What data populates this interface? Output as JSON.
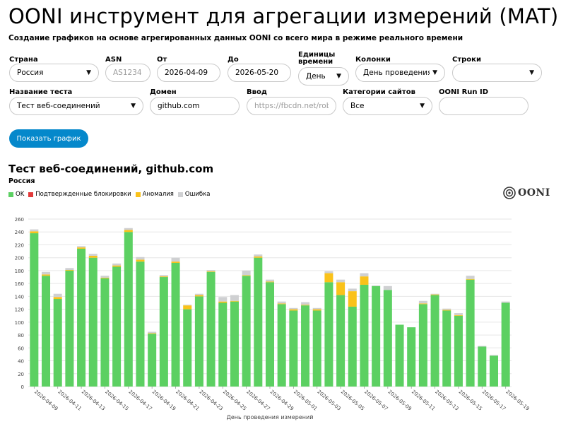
{
  "header": {
    "title": "OONI инструмент для агрегации измерений (MAT)",
    "subtitle": "Создание графиков на основе агрегированных данных OONI со всего мира в режиме реального времени"
  },
  "form": {
    "country_label": "Страна",
    "country_value": "Россия",
    "asn_label": "ASN",
    "asn_placeholder": "AS1234",
    "from_label": "От",
    "from_value": "2026-04-09",
    "to_label": "До",
    "to_value": "2026-05-20",
    "time_unit_label_1": "Единицы",
    "time_unit_label_2": "времени",
    "time_unit_value": "День",
    "columns_label": "Колонки",
    "columns_value": "День проведения измерений",
    "rows_label": "Строки",
    "rows_value": "",
    "test_name_label": "Название теста",
    "test_name_value": "Тест веб-соединений",
    "domain_label": "Домен",
    "domain_value": "github.com",
    "input_label": "Ввод",
    "input_placeholder": "https://fbcdn.net/robots.txt",
    "category_label": "Категории сайтов",
    "category_value": "Все",
    "run_id_label": "OONI Run ID",
    "run_id_value": "",
    "submit_label": "Показать график"
  },
  "chart_header": {
    "title": "Тест веб-соединений, github.com",
    "subtitle": "Россия",
    "logo_text": "OONI"
  },
  "chart_data": {
    "type": "bar",
    "stacked": true,
    "xlabel": "День проведения измерений",
    "ylabel": "",
    "ylim": [
      0,
      260
    ],
    "yticks": [
      0,
      20,
      40,
      60,
      80,
      100,
      120,
      140,
      160,
      180,
      200,
      220,
      240,
      260
    ],
    "grid": true,
    "legend_position": "top-left",
    "categories": [
      "2026-04-09",
      "2026-04-10",
      "2026-04-11",
      "2026-04-12",
      "2026-04-13",
      "2026-04-14",
      "2026-04-15",
      "2026-04-16",
      "2026-04-17",
      "2026-04-18",
      "2026-04-19",
      "2026-04-20",
      "2026-04-21",
      "2026-04-22",
      "2026-04-23",
      "2026-04-24",
      "2026-04-25",
      "2026-04-26",
      "2026-04-27",
      "2026-04-28",
      "2026-04-29",
      "2026-04-30",
      "2026-05-01",
      "2026-05-02",
      "2026-05-03",
      "2026-05-04",
      "2026-05-05",
      "2026-05-06",
      "2026-05-07",
      "2026-05-08",
      "2026-05-09",
      "2026-05-10",
      "2026-05-11",
      "2026-05-12",
      "2026-05-13",
      "2026-05-14",
      "2026-05-15",
      "2026-05-16",
      "2026-05-17",
      "2026-05-18",
      "2026-05-19"
    ],
    "tick_labels": [
      "2026-04-09",
      "2026-04-11",
      "2026-04-13",
      "2026-04-15",
      "2026-04-17",
      "2026-04-19",
      "2026-04-21",
      "2026-04-23",
      "2026-04-25",
      "2026-04-27",
      "2026-04-29",
      "2026-05-01",
      "2026-05-03",
      "2026-05-05",
      "2026-05-07",
      "2026-05-09",
      "2026-05-11",
      "2026-05-13",
      "2026-05-15",
      "2026-05-17",
      "2026-05-19"
    ],
    "series": [
      {
        "name": "OK",
        "color": "#5cd062",
        "values": [
          238,
          172,
          136,
          180,
          214,
          200,
          168,
          186,
          240,
          194,
          82,
          170,
          192,
          120,
          140,
          178,
          130,
          132,
          172,
          200,
          162,
          128,
          118,
          126,
          118,
          162,
          142,
          124,
          158,
          156,
          150,
          96,
          92,
          128,
          142,
          118,
          110,
          166,
          62,
          48,
          130
        ]
      },
      {
        "name": "Подтвержденные блокировки",
        "color": "#e23a3a",
        "values": [
          0,
          0,
          0,
          0,
          0,
          0,
          0,
          0,
          0,
          0,
          0,
          0,
          0,
          0,
          0,
          0,
          0,
          0,
          0,
          0,
          0,
          0,
          0,
          0,
          0,
          0,
          0,
          0,
          0,
          0,
          0,
          0,
          0,
          0,
          0,
          0,
          0,
          0,
          0,
          0,
          0
        ]
      },
      {
        "name": "Аномалия",
        "color": "#fac21a",
        "values": [
          3,
          2,
          3,
          1,
          2,
          3,
          1,
          2,
          3,
          3,
          1,
          1,
          2,
          6,
          2,
          1,
          2,
          1,
          1,
          2,
          1,
          1,
          2,
          1,
          2,
          14,
          20,
          24,
          13,
          0,
          0,
          0,
          0,
          1,
          1,
          1,
          1,
          1,
          0,
          0,
          0
        ]
      },
      {
        "name": "Ошибка",
        "color": "#cfd0d2",
        "values": [
          3,
          4,
          5,
          3,
          2,
          3,
          3,
          3,
          3,
          4,
          2,
          2,
          6,
          1,
          2,
          2,
          7,
          9,
          7,
          3,
          3,
          3,
          2,
          4,
          2,
          3,
          4,
          4,
          5,
          1,
          6,
          0,
          0,
          4,
          1,
          2,
          3,
          5,
          1,
          1,
          2
        ]
      }
    ]
  }
}
